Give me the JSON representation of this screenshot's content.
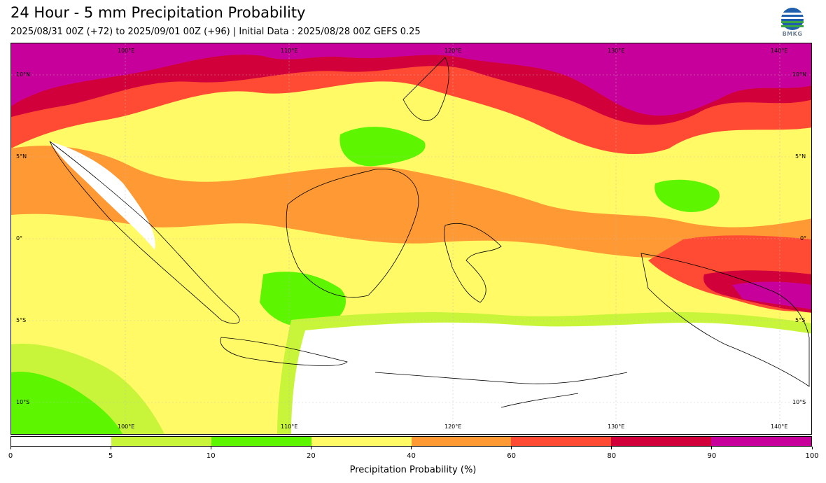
{
  "title": "24 Hour - 5 mm Precipitation Probability",
  "subtitle": "2025/08/31 00Z (+72) to 2025/09/01 00Z (+96) | Initial Data : 2025/08/28 00Z GEFS 0.25",
  "logo": {
    "name": "bmkg-logo",
    "text": "BMKG"
  },
  "map": {
    "region": "Indonesia / Maritime Continent",
    "lon_labels": [
      "100°E",
      "110°E",
      "120°E",
      "130°E",
      "140°E"
    ],
    "lat_labels": [
      "10°N",
      "5°N",
      "0°",
      "5°S",
      "10°S"
    ]
  },
  "legend": {
    "label": "Precipitation Probability (%)",
    "ticks": [
      "0",
      "5",
      "10",
      "20",
      "40",
      "60",
      "80",
      "90",
      "100"
    ],
    "colors": [
      "#ffffff",
      "#c8f53a",
      "#5ef500",
      "#fffa66",
      "#ff9933",
      "#ff4b33",
      "#d1003b",
      "#c8009b"
    ]
  }
}
